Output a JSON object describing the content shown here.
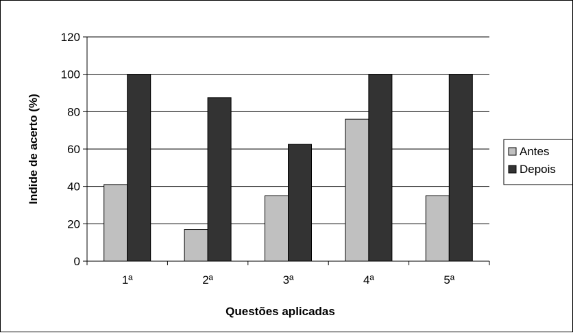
{
  "chart_data": {
    "type": "bar",
    "title": "",
    "xlabel": "Questões aplicadas",
    "ylabel": "Indide de acerto (%)",
    "categories": [
      "1ª",
      "2ª",
      "3ª",
      "4ª",
      "5ª"
    ],
    "series": [
      {
        "name": "Antes",
        "values": [
          41,
          17,
          35,
          76,
          35
        ],
        "color": "#c0c0c0"
      },
      {
        "name": "Depois",
        "values": [
          100,
          87.5,
          62.5,
          100,
          100
        ],
        "color": "#333333"
      }
    ],
    "ylim": [
      0,
      120
    ],
    "yticks": [
      0,
      20,
      40,
      60,
      80,
      100,
      120
    ],
    "grid": true,
    "legend_position": "right"
  }
}
